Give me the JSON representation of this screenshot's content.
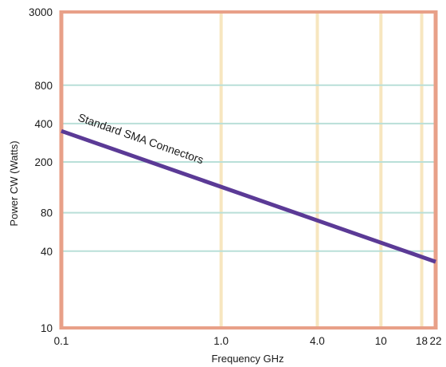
{
  "chart_data": {
    "type": "line",
    "title": "",
    "xlabel": "Frequency GHz",
    "ylabel": "Power CW (Watts)",
    "x_scale": "log",
    "y_scale": "log",
    "xlim": [
      0.1,
      22
    ],
    "ylim": [
      10,
      3000
    ],
    "x_tick_labels": [
      "0.1",
      "1.0",
      "4.0",
      "10",
      "18",
      "22"
    ],
    "y_tick_labels": [
      "3000",
      "800",
      "400",
      "200",
      "80",
      "40",
      "10"
    ],
    "x_ticks": [
      0.1,
      1.0,
      4.0,
      10,
      18,
      22
    ],
    "y_ticks": [
      3000,
      800,
      400,
      200,
      80,
      40,
      10
    ],
    "grid": true,
    "series": [
      {
        "name": "Standard SMA Connectors",
        "x": [
          0.1,
          22
        ],
        "y": [
          350,
          33
        ]
      }
    ],
    "annotations": [
      "Standard SMA Connectors"
    ],
    "colors": {
      "series": "#5b3a96",
      "frame": "#e8a088",
      "vgrid": "#f7e6bf",
      "hgrid": "#b9dfd8"
    }
  }
}
